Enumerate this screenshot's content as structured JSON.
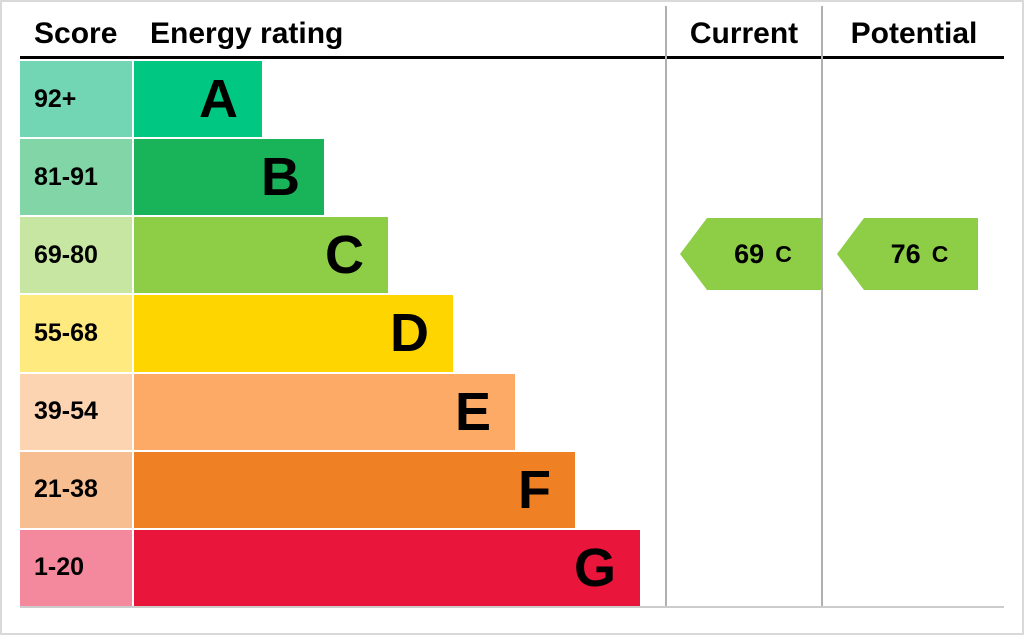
{
  "header": {
    "score": "Score",
    "energy_rating": "Energy rating",
    "current": "Current",
    "potential": "Potential"
  },
  "bands": [
    {
      "score": "92+",
      "letter": "A",
      "color": "#00c781",
      "score_bg": "#72d6b5"
    },
    {
      "score": "81-91",
      "letter": "B",
      "color": "#19b459",
      "score_bg": "#82d5a6"
    },
    {
      "score": "69-80",
      "letter": "C",
      "color": "#8dce46",
      "score_bg": "#c6e6a2"
    },
    {
      "score": "55-68",
      "letter": "D",
      "color": "#ffd500",
      "score_bg": "#ffea80"
    },
    {
      "score": "39-54",
      "letter": "E",
      "color": "#fcaa65",
      "score_bg": "#fdd4b2"
    },
    {
      "score": "21-38",
      "letter": "F",
      "color": "#ef8023",
      "score_bg": "#f7bf91"
    },
    {
      "score": "1-20",
      "letter": "G",
      "color": "#e9153b",
      "score_bg": "#f4899d"
    }
  ],
  "current": {
    "value": "69",
    "band": "C",
    "color": "#8dce46"
  },
  "potential": {
    "value": "76",
    "band": "C",
    "color": "#8dce46"
  },
  "chart_data": {
    "type": "bar",
    "title": "Energy rating",
    "categories": [
      "A",
      "B",
      "C",
      "D",
      "E",
      "F",
      "G"
    ],
    "score_ranges": [
      "92+",
      "81-91",
      "69-80",
      "55-68",
      "39-54",
      "21-38",
      "1-20"
    ],
    "bar_colors": [
      "#00c781",
      "#19b459",
      "#8dce46",
      "#ffd500",
      "#fcaa65",
      "#ef8023",
      "#e9153b"
    ],
    "columns": [
      "Score",
      "Energy rating",
      "Current",
      "Potential"
    ],
    "current": {
      "score": 69,
      "band": "C"
    },
    "potential": {
      "score": 76,
      "band": "C"
    },
    "legend_position": "none",
    "grid": false
  }
}
